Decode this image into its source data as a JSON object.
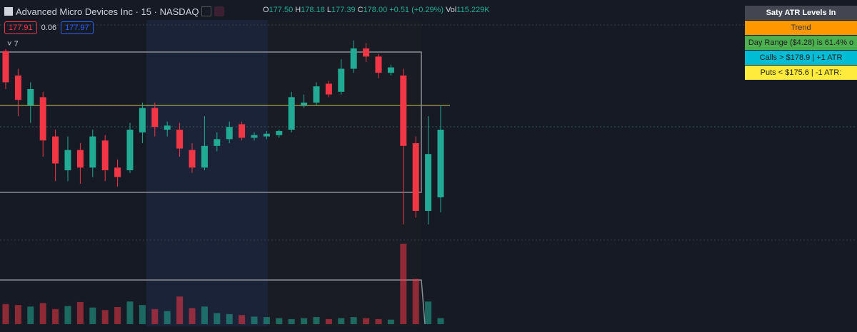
{
  "header": {
    "title": "Advanced Micro Devices Inc · 15 · NASDAQ",
    "ohlc": [
      {
        "key": "O",
        "value": "177.50"
      },
      {
        "key": "H",
        "value": "178.18"
      },
      {
        "key": "L",
        "value": "177.39"
      },
      {
        "key": "C",
        "value": "178.00"
      }
    ],
    "change": "+0.51 (+0.29%)",
    "volume_key": "Vol",
    "volume_value": "115.229K",
    "price_tags": [
      "177.91",
      "0.06",
      "177.97"
    ],
    "indicator_count": "7"
  },
  "chart_data": {
    "type": "candlestick",
    "ylim": [
      177.2,
      178.8
    ],
    "up_color": "#22ab94",
    "down_color": "#f23645",
    "open": [
      178.58,
      178.4,
      178.18,
      178.24,
      177.95,
      177.7,
      177.85,
      177.72,
      177.92,
      177.72,
      177.7,
      177.98,
      178.16,
      178.0,
      178.0,
      177.85,
      177.72,
      177.88,
      177.93,
      178.04,
      177.94,
      177.95,
      177.96,
      178.0,
      178.18,
      178.2,
      178.34,
      178.28,
      178.45,
      178.6,
      178.54,
      178.42,
      178.4,
      177.9,
      177.4,
      177.5
    ],
    "high": [
      178.62,
      178.45,
      178.35,
      178.28,
      178.0,
      177.95,
      177.9,
      178.0,
      177.96,
      177.78,
      178.05,
      178.2,
      178.2,
      178.06,
      178.05,
      177.9,
      178.1,
      177.98,
      178.06,
      178.06,
      177.98,
      177.99,
      178.0,
      178.28,
      178.26,
      178.35,
      178.36,
      178.52,
      178.66,
      178.64,
      178.56,
      178.48,
      178.45,
      177.95,
      178.1,
      178.18
    ],
    "low": [
      178.3,
      178.1,
      178.05,
      177.8,
      177.62,
      177.62,
      177.6,
      177.65,
      177.62,
      177.58,
      177.68,
      177.9,
      177.95,
      177.95,
      177.8,
      177.68,
      177.7,
      177.84,
      177.9,
      177.92,
      177.92,
      177.93,
      177.94,
      177.98,
      178.16,
      178.18,
      178.24,
      178.26,
      178.42,
      178.5,
      178.38,
      178.4,
      177.3,
      177.35,
      177.3,
      177.39
    ],
    "close": [
      178.35,
      178.22,
      178.3,
      177.92,
      177.75,
      177.85,
      177.72,
      177.95,
      177.7,
      177.65,
      178.0,
      178.16,
      178.02,
      178.03,
      177.86,
      177.72,
      177.88,
      177.93,
      178.02,
      177.94,
      177.96,
      177.97,
      177.99,
      178.24,
      178.2,
      178.32,
      178.26,
      178.45,
      178.6,
      178.54,
      178.42,
      178.46,
      177.88,
      177.4,
      177.82,
      178.0
    ],
    "volume": [
      40,
      38,
      35,
      42,
      30,
      36,
      44,
      33,
      28,
      34,
      45,
      38,
      30,
      26,
      55,
      32,
      35,
      22,
      20,
      18,
      15,
      14,
      12,
      10,
      12,
      14,
      10,
      12,
      14,
      12,
      10,
      9,
      160,
      90,
      45,
      12
    ]
  },
  "table": {
    "title": "Saty ATR Levels In",
    "rows": [
      "Trend",
      "Day Range ($4.28) is 61.4% o",
      "Calls > $178.9 | +1 ATR",
      "Puts < $175.6 | -1 ATR:"
    ]
  }
}
